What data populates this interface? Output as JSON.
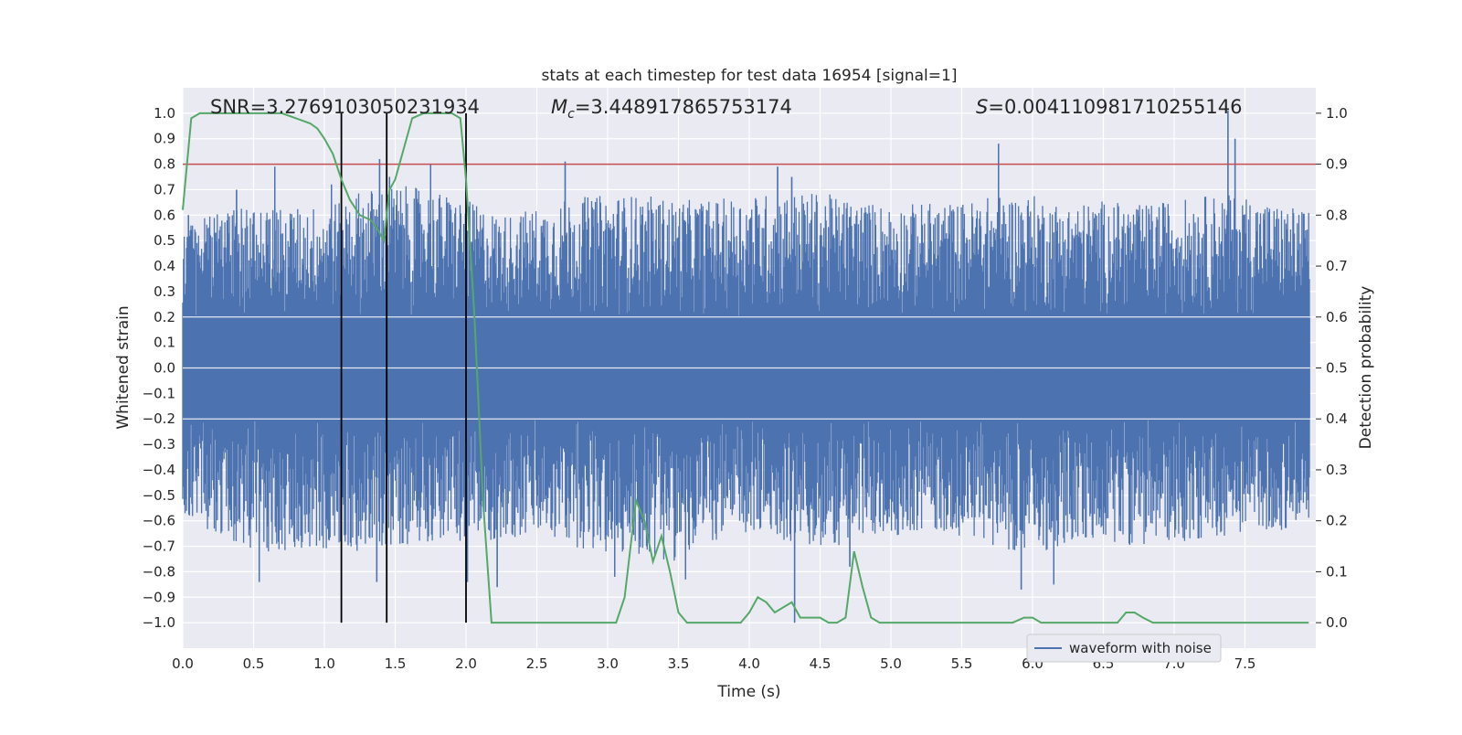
{
  "chart_data": {
    "type": "line",
    "title": "stats at each timestep for test data 16954 [signal=1]",
    "xlabel": "Time (s)",
    "ylabel": "Whitened strain",
    "ylabel_right": "Detection probability",
    "xlim": [
      0.0,
      8.0
    ],
    "ylim": [
      -1.1,
      1.1
    ],
    "ylim_right": [
      -0.05,
      1.05
    ],
    "x_ticks": [
      0.0,
      0.5,
      1.0,
      1.5,
      2.0,
      2.5,
      3.0,
      3.5,
      4.0,
      4.5,
      5.0,
      5.5,
      6.0,
      6.5,
      7.0,
      7.5
    ],
    "x_tick_labels": [
      "0.0",
      "0.5",
      "1.0",
      "1.5",
      "2.0",
      "2.5",
      "3.0",
      "3.5",
      "4.0",
      "4.5",
      "5.0",
      "5.5",
      "6.0",
      "6.5",
      "7.0",
      "7.5"
    ],
    "y_ticks": [
      1.0,
      0.9,
      0.8,
      0.7,
      0.6,
      0.5,
      0.4,
      0.3,
      0.2,
      0.1,
      0.0,
      -0.1,
      -0.2,
      -0.3,
      -0.4,
      -0.5,
      -0.6,
      -0.7,
      -0.8,
      -0.9,
      -1.0
    ],
    "y_tick_labels": [
      "1.0",
      "0.9",
      "0.8",
      "0.7",
      "0.6",
      "0.5",
      "0.4",
      "0.3",
      "0.2",
      "0.1",
      "0.0",
      "−0.1",
      "−0.2",
      "−0.3",
      "−0.4",
      "−0.5",
      "−0.6",
      "−0.7",
      "−0.8",
      "−0.9",
      "−1.0"
    ],
    "y_right_ticks": [
      1.0,
      0.9,
      0.8,
      0.7,
      0.6,
      0.5,
      0.4,
      0.3,
      0.2,
      0.1,
      0.0
    ],
    "y_right_tick_labels": [
      "1.0",
      "0.9",
      "0.8",
      "0.7",
      "0.6",
      "0.5",
      "0.4",
      "0.3",
      "0.2",
      "0.1",
      "0.0"
    ],
    "grid": true,
    "legend_position": "bottom-right",
    "annotations": {
      "snr": "SNR=3.2769103050231934",
      "mc_symbol": "M",
      "mc_sub": "c",
      "mc_value": "=3.448917865753174",
      "s_symbol": "S",
      "s_value": "=0.004110981710255146"
    },
    "series": [
      {
        "name": "waveform with noise",
        "axis": "left",
        "color": "#4c72b0",
        "envelope": {
          "note_values": "approximate",
          "x": [
            0.0,
            0.25,
            0.5,
            0.75,
            1.0,
            1.25,
            1.5,
            1.75,
            2.0,
            2.25,
            2.5,
            2.75,
            3.0,
            3.25,
            3.5,
            3.75,
            4.0,
            4.25,
            4.5,
            4.75,
            5.0,
            5.25,
            5.5,
            5.75,
            6.0,
            6.25,
            6.5,
            6.75,
            7.0,
            7.25,
            7.5,
            7.75,
            8.0
          ],
          "upper": [
            0.57,
            0.62,
            0.63,
            0.63,
            0.64,
            0.7,
            0.72,
            0.7,
            0.66,
            0.6,
            0.63,
            0.67,
            0.68,
            0.68,
            0.66,
            0.66,
            0.68,
            0.69,
            0.69,
            0.66,
            0.64,
            0.65,
            0.65,
            0.68,
            0.68,
            0.64,
            0.66,
            0.64,
            0.66,
            0.68,
            0.68,
            0.64,
            0.62
          ],
          "lower": [
            -0.6,
            -0.66,
            -0.72,
            -0.72,
            -0.72,
            -0.72,
            -0.7,
            -0.68,
            -0.68,
            -0.68,
            -0.66,
            -0.7,
            -0.74,
            -0.74,
            -0.76,
            -0.68,
            -0.66,
            -0.68,
            -0.72,
            -0.68,
            -0.66,
            -0.64,
            -0.66,
            -0.7,
            -0.74,
            -0.7,
            -0.68,
            -0.7,
            -0.68,
            -0.68,
            -0.64,
            -0.64,
            -0.62
          ],
          "core": 0.2
        },
        "peaks": [
          {
            "x": 0.04,
            "y": 0.6
          },
          {
            "x": 0.38,
            "y": 0.7
          },
          {
            "x": 0.65,
            "y": 0.79
          },
          {
            "x": 1.05,
            "y": 0.72
          },
          {
            "x": 1.39,
            "y": 0.82
          },
          {
            "x": 1.46,
            "y": 0.75
          },
          {
            "x": 1.75,
            "y": 0.8
          },
          {
            "x": 2.7,
            "y": 0.81
          },
          {
            "x": 4.2,
            "y": 0.79
          },
          {
            "x": 4.3,
            "y": 0.75
          },
          {
            "x": 5.76,
            "y": 0.88
          },
          {
            "x": 7.38,
            "y": 1.01
          },
          {
            "x": 7.43,
            "y": 0.9
          },
          {
            "x": 7.49,
            "y": 0.6
          }
        ],
        "troughs": [
          {
            "x": 0.54,
            "y": -0.84
          },
          {
            "x": 1.37,
            "y": -0.84
          },
          {
            "x": 1.44,
            "y": -0.8
          },
          {
            "x": 2.01,
            "y": -0.84
          },
          {
            "x": 2.22,
            "y": -0.86
          },
          {
            "x": 3.05,
            "y": -0.82
          },
          {
            "x": 3.55,
            "y": -0.83
          },
          {
            "x": 4.32,
            "y": -1.0
          },
          {
            "x": 4.71,
            "y": -0.78
          },
          {
            "x": 5.92,
            "y": -0.87
          },
          {
            "x": 6.15,
            "y": -0.85
          }
        ]
      },
      {
        "name": "",
        "axis": "right",
        "color": "#55a868",
        "x": [
          0.0,
          0.06,
          0.12,
          0.2,
          0.3,
          0.4,
          0.5,
          0.6,
          0.7,
          0.8,
          0.9,
          0.95,
          1.0,
          1.06,
          1.12,
          1.18,
          1.25,
          1.33,
          1.38,
          1.42,
          1.46,
          1.5,
          1.56,
          1.62,
          1.7,
          1.8,
          1.9,
          1.96,
          2.0,
          2.06,
          2.12,
          2.18,
          2.25,
          2.32,
          2.4,
          2.5,
          2.6,
          2.7,
          2.8,
          2.9,
          3.0,
          3.06,
          3.12,
          3.2,
          3.26,
          3.32,
          3.38,
          3.44,
          3.5,
          3.56,
          3.62,
          3.7,
          3.8,
          3.88,
          3.94,
          4.0,
          4.06,
          4.12,
          4.18,
          4.24,
          4.3,
          4.36,
          4.42,
          4.5,
          4.56,
          4.62,
          4.68,
          4.74,
          4.8,
          4.86,
          4.92,
          5.0,
          5.1,
          5.3,
          5.5,
          5.7,
          5.86,
          5.94,
          6.0,
          6.06,
          6.14,
          6.3,
          6.45,
          6.6,
          6.66,
          6.72,
          6.78,
          6.85,
          7.0,
          7.2,
          7.4,
          7.6,
          7.8,
          7.95
        ],
        "y": [
          0.81,
          0.99,
          1.0,
          1.0,
          1.0,
          1.0,
          1.0,
          1.0,
          1.0,
          0.99,
          0.98,
          0.97,
          0.95,
          0.92,
          0.87,
          0.83,
          0.8,
          0.79,
          0.77,
          0.75,
          0.85,
          0.87,
          0.93,
          0.99,
          1.0,
          1.0,
          1.0,
          0.99,
          0.87,
          0.6,
          0.24,
          0.0,
          0.0,
          0.0,
          0.0,
          0.0,
          0.0,
          0.0,
          0.0,
          0.0,
          0.0,
          0.0,
          0.05,
          0.24,
          0.2,
          0.12,
          0.17,
          0.1,
          0.02,
          0.0,
          0.0,
          0.0,
          0.0,
          0.0,
          0.0,
          0.02,
          0.05,
          0.04,
          0.02,
          0.03,
          0.04,
          0.01,
          0.01,
          0.01,
          0.0,
          0.0,
          0.01,
          0.14,
          0.07,
          0.01,
          0.0,
          0.0,
          0.0,
          0.0,
          0.0,
          0.0,
          0.0,
          0.01,
          0.01,
          0.0,
          0.0,
          0.0,
          0.0,
          0.0,
          0.02,
          0.02,
          0.01,
          0.0,
          0.0,
          0.0,
          0.0,
          0.0,
          0.0,
          0.0
        ]
      }
    ],
    "threshold_line": {
      "axis": "left",
      "y": 0.8,
      "color": "#c44e52"
    },
    "vertical_lines": {
      "color": "#000000",
      "x": [
        1.12,
        1.44,
        2.0
      ]
    }
  }
}
